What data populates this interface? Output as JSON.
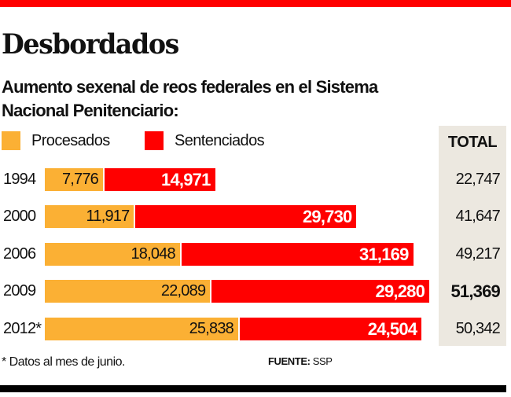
{
  "title": "Desbordados",
  "subtitle": "Aumento sexenal de reos federales en el Sistema Nacional Penitenciario:",
  "colors": {
    "procesados": "#fbb034",
    "sentenciados": "#ff0000",
    "accent": "#ff0000",
    "total_bg": "#ece8e0"
  },
  "chart_data": {
    "type": "bar",
    "orientation": "horizontal",
    "stacked": true,
    "title": "Desbordados",
    "categories": [
      "1994",
      "2000",
      "2006",
      "2009",
      "2012*"
    ],
    "series": [
      {
        "name": "Procesados",
        "values": [
          7776,
          11917,
          18048,
          22089,
          25838
        ],
        "labels": [
          "7,776",
          "11,917",
          "18,048",
          "22,089",
          "25,838"
        ]
      },
      {
        "name": "Sentenciados",
        "values": [
          14971,
          29730,
          31169,
          29280,
          24504
        ],
        "labels": [
          "14,971",
          "29,730",
          "31,169",
          "29,280",
          "24,504"
        ]
      }
    ],
    "total_header": "TOTAL",
    "totals": [
      "22,747",
      "41,647",
      "49,217",
      "51,369",
      "50,342"
    ],
    "highlight_total_index": 3,
    "legend": "top-left"
  },
  "footnote": "* Datos al mes de junio.",
  "source_label": "FUENTE:",
  "source": "SSP"
}
